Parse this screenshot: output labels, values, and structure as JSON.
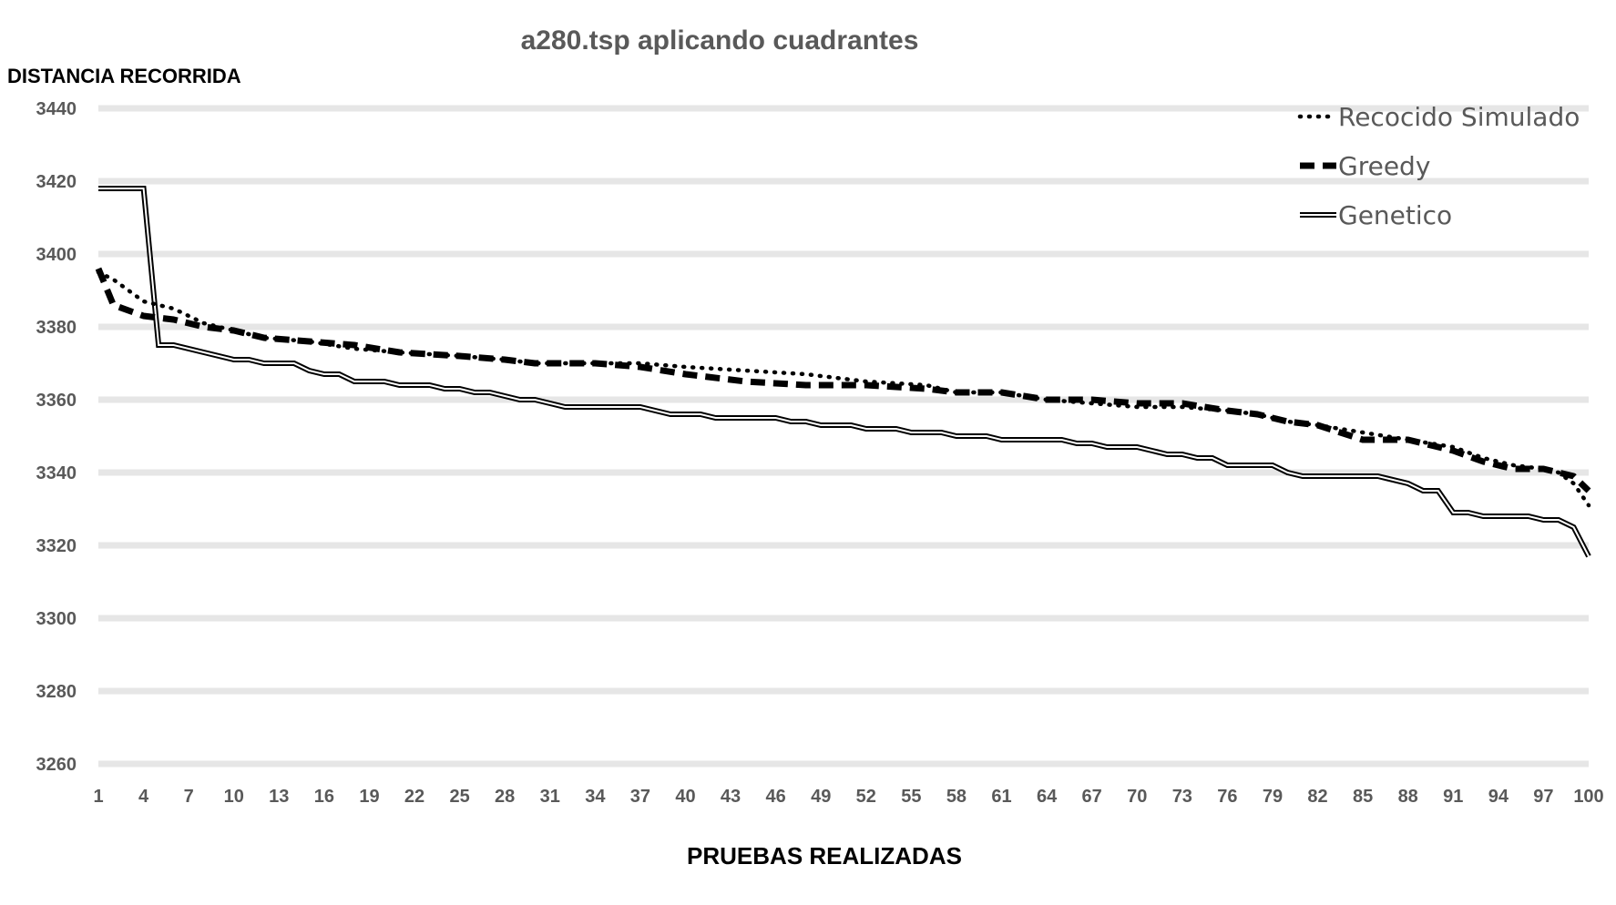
{
  "chart_data": {
    "type": "line",
    "title": "a280.tsp aplicando cuadrantes",
    "ylabel": "DISTANCIA RECORRIDA",
    "xlabel": "PRUEBAS REALIZADAS",
    "ylim": [
      3260,
      3440
    ],
    "yticks": [
      3260,
      3280,
      3300,
      3320,
      3340,
      3360,
      3380,
      3400,
      3420,
      3440
    ],
    "xlim": [
      1,
      100
    ],
    "xticks": [
      1,
      4,
      7,
      10,
      13,
      16,
      19,
      22,
      25,
      28,
      31,
      34,
      37,
      40,
      43,
      46,
      49,
      52,
      55,
      58,
      61,
      64,
      67,
      70,
      73,
      76,
      79,
      82,
      85,
      88,
      91,
      94,
      97,
      100
    ],
    "grid": true,
    "legend_position": "top-right",
    "series": [
      {
        "name": "Recocido Simulado",
        "style": "dotted",
        "color": "#000000",
        "x": [
          1,
          2,
          4,
          6,
          8,
          10,
          12,
          15,
          18,
          21,
          25,
          28,
          30,
          34,
          37,
          40,
          44,
          48,
          52,
          56,
          58,
          61,
          64,
          67,
          70,
          73,
          76,
          78,
          80,
          82,
          85,
          88,
          91,
          93,
          95,
          97,
          98,
          99,
          100
        ],
        "values": [
          3395,
          3393,
          3387,
          3385,
          3381,
          3379,
          3377,
          3376,
          3374,
          3373,
          3372,
          3371,
          3370,
          3370,
          3370,
          3369,
          3368,
          3367,
          3365,
          3364,
          3362,
          3362,
          3360,
          3359,
          3358,
          3358,
          3357,
          3356,
          3354,
          3353,
          3351,
          3349,
          3347,
          3344,
          3342,
          3341,
          3340,
          3337,
          3331
        ]
      },
      {
        "name": "Greedy",
        "style": "dashed",
        "color": "#000000",
        "x": [
          1,
          2,
          4,
          6,
          8,
          10,
          12,
          15,
          18,
          21,
          25,
          28,
          30,
          34,
          37,
          40,
          44,
          48,
          52,
          56,
          58,
          61,
          64,
          67,
          70,
          73,
          76,
          78,
          80,
          82,
          85,
          88,
          91,
          93,
          95,
          97,
          98,
          99,
          100
        ],
        "values": [
          3396,
          3386,
          3383,
          3382,
          3380,
          3379,
          3377,
          3376,
          3375,
          3373,
          3372,
          3371,
          3370,
          3370,
          3369,
          3367,
          3365,
          3364,
          3364,
          3363,
          3362,
          3362,
          3360,
          3360,
          3359,
          3359,
          3357,
          3356,
          3354,
          3353,
          3349,
          3349,
          3346,
          3343,
          3341,
          3341,
          3340,
          3339,
          3335
        ]
      },
      {
        "name": "Genetico",
        "style": "double",
        "color": "#000000",
        "x": [
          1,
          4,
          5,
          6,
          8,
          10,
          11,
          12,
          14,
          15,
          16,
          17,
          18,
          20,
          21,
          23,
          24,
          25,
          26,
          27,
          28,
          29,
          30,
          31,
          32,
          37,
          38,
          39,
          40,
          41,
          42,
          46,
          47,
          48,
          49,
          50,
          51,
          52,
          53,
          54,
          55,
          56,
          57,
          58,
          59,
          60,
          61,
          62,
          63,
          64,
          65,
          66,
          67,
          68,
          69,
          70,
          71,
          72,
          73,
          74,
          75,
          76,
          79,
          80,
          81,
          86,
          88,
          89,
          90,
          91,
          92,
          93,
          96,
          97,
          98,
          99,
          100
        ],
        "values": [
          3418,
          3418,
          3375,
          3375,
          3373,
          3371,
          3371,
          3370,
          3370,
          3368,
          3367,
          3367,
          3365,
          3365,
          3364,
          3364,
          3363,
          3363,
          3362,
          3362,
          3361,
          3360,
          3360,
          3359,
          3358,
          3358,
          3357,
          3356,
          3356,
          3356,
          3355,
          3355,
          3354,
          3354,
          3353,
          3353,
          3353,
          3352,
          3352,
          3352,
          3351,
          3351,
          3351,
          3350,
          3350,
          3350,
          3349,
          3349,
          3349,
          3349,
          3349,
          3348,
          3348,
          3347,
          3347,
          3347,
          3346,
          3345,
          3345,
          3344,
          3344,
          3342,
          3342,
          3340,
          3339,
          3339,
          3337,
          3335,
          3335,
          3329,
          3329,
          3328,
          3328,
          3327,
          3327,
          3325,
          3317
        ]
      }
    ]
  }
}
